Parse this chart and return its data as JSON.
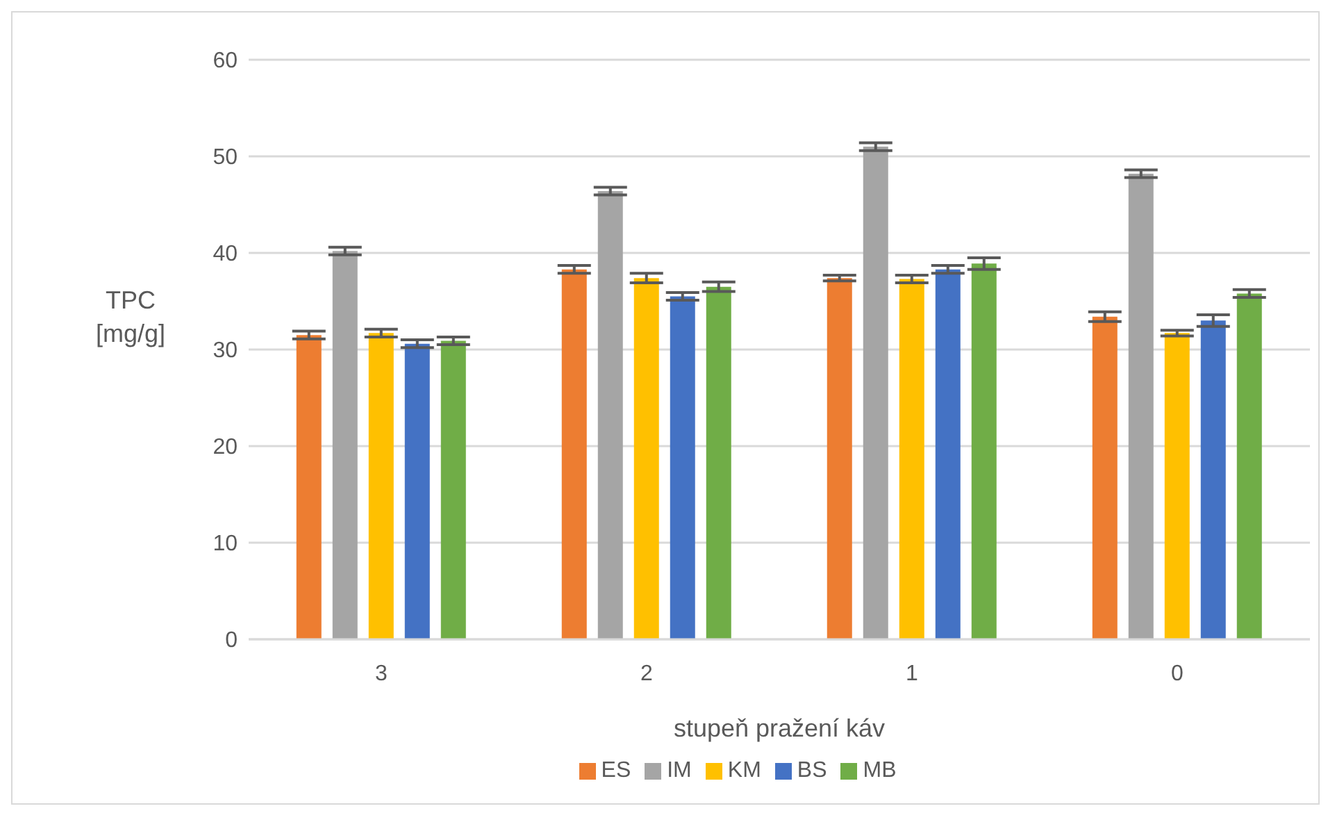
{
  "chart_data": {
    "type": "bar",
    "xlabel": "stupeň pražení káv",
    "ylabel": "TPC [mg/g]",
    "categories": [
      "3",
      "2",
      "1",
      "0"
    ],
    "series": [
      {
        "name": "ES",
        "color": "#ed7d31",
        "values": [
          31.5,
          38.3,
          37.4,
          33.4
        ],
        "errors": [
          0.4,
          0.4,
          0.3,
          0.5
        ]
      },
      {
        "name": "IM",
        "color": "#a5a5a5",
        "values": [
          40.2,
          46.4,
          51.0,
          48.2
        ],
        "errors": [
          0.4,
          0.4,
          0.4,
          0.4
        ]
      },
      {
        "name": "KM",
        "color": "#ffc000",
        "values": [
          31.7,
          37.4,
          37.3,
          31.7
        ],
        "errors": [
          0.4,
          0.5,
          0.4,
          0.3
        ]
      },
      {
        "name": "BS",
        "color": "#4472c4",
        "values": [
          30.6,
          35.5,
          38.3,
          33.0
        ],
        "errors": [
          0.4,
          0.4,
          0.4,
          0.6
        ]
      },
      {
        "name": "MB",
        "color": "#70ad47",
        "values": [
          30.9,
          36.5,
          38.9,
          35.8
        ],
        "errors": [
          0.4,
          0.5,
          0.6,
          0.4
        ]
      }
    ],
    "ylim": [
      0,
      60
    ],
    "yticks": [
      0,
      10,
      20,
      30,
      40,
      50,
      60
    ],
    "grid": "y",
    "legend": "bottom"
  }
}
